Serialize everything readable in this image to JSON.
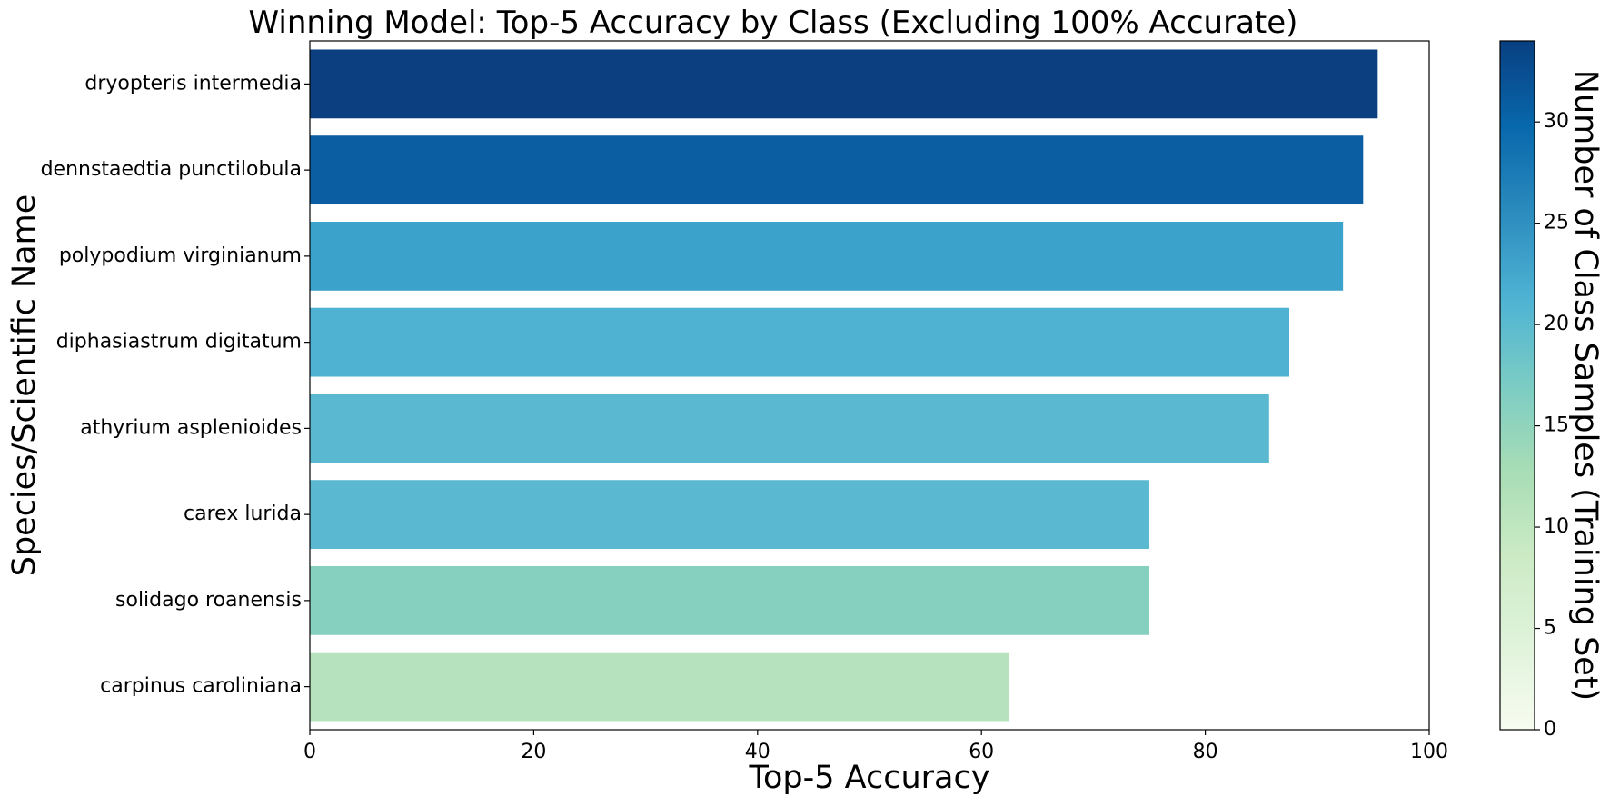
{
  "chart_data": {
    "type": "bar",
    "orientation": "horizontal",
    "title": "Winning Model: Top-5 Accuracy by Class (Excluding 100% Accurate)",
    "xlabel": "Top-5 Accuracy",
    "ylabel": "Species/Scientific Name",
    "xlim": [
      0,
      100
    ],
    "xticks": [
      "0",
      "20",
      "40",
      "60",
      "80",
      "100"
    ],
    "grid": false,
    "categories": [
      "dryopteris intermedia",
      "dennstaedtia punctilobula",
      "polypodium virginianum",
      "diphasiastrum digitatum",
      "athyrium asplenioides",
      "carex lurida",
      "solidago roanensis",
      "carpinus caroliniana"
    ],
    "values": [
      95.4,
      94.1,
      92.3,
      87.5,
      85.7,
      75.0,
      75.0,
      62.5
    ],
    "bar_colors": [
      "#0b3f7f",
      "#0b5ea2",
      "#3ba2cb",
      "#50b2d3",
      "#5bb8d1",
      "#5bb8d1",
      "#86d0c0",
      "#b6e2bd"
    ],
    "colorbar": {
      "label": "Number of Class Samples (Training Set)",
      "range": [
        0,
        34
      ],
      "ticks": [
        "0",
        "5",
        "10",
        "15",
        "20",
        "25",
        "30"
      ],
      "colormap": [
        "#f7fcf0",
        "#e0f3db",
        "#ccebc5",
        "#a8ddb5",
        "#7bccc4",
        "#4eb3d3",
        "#2b8cbe",
        "#0868ac",
        "#084081"
      ]
    }
  }
}
